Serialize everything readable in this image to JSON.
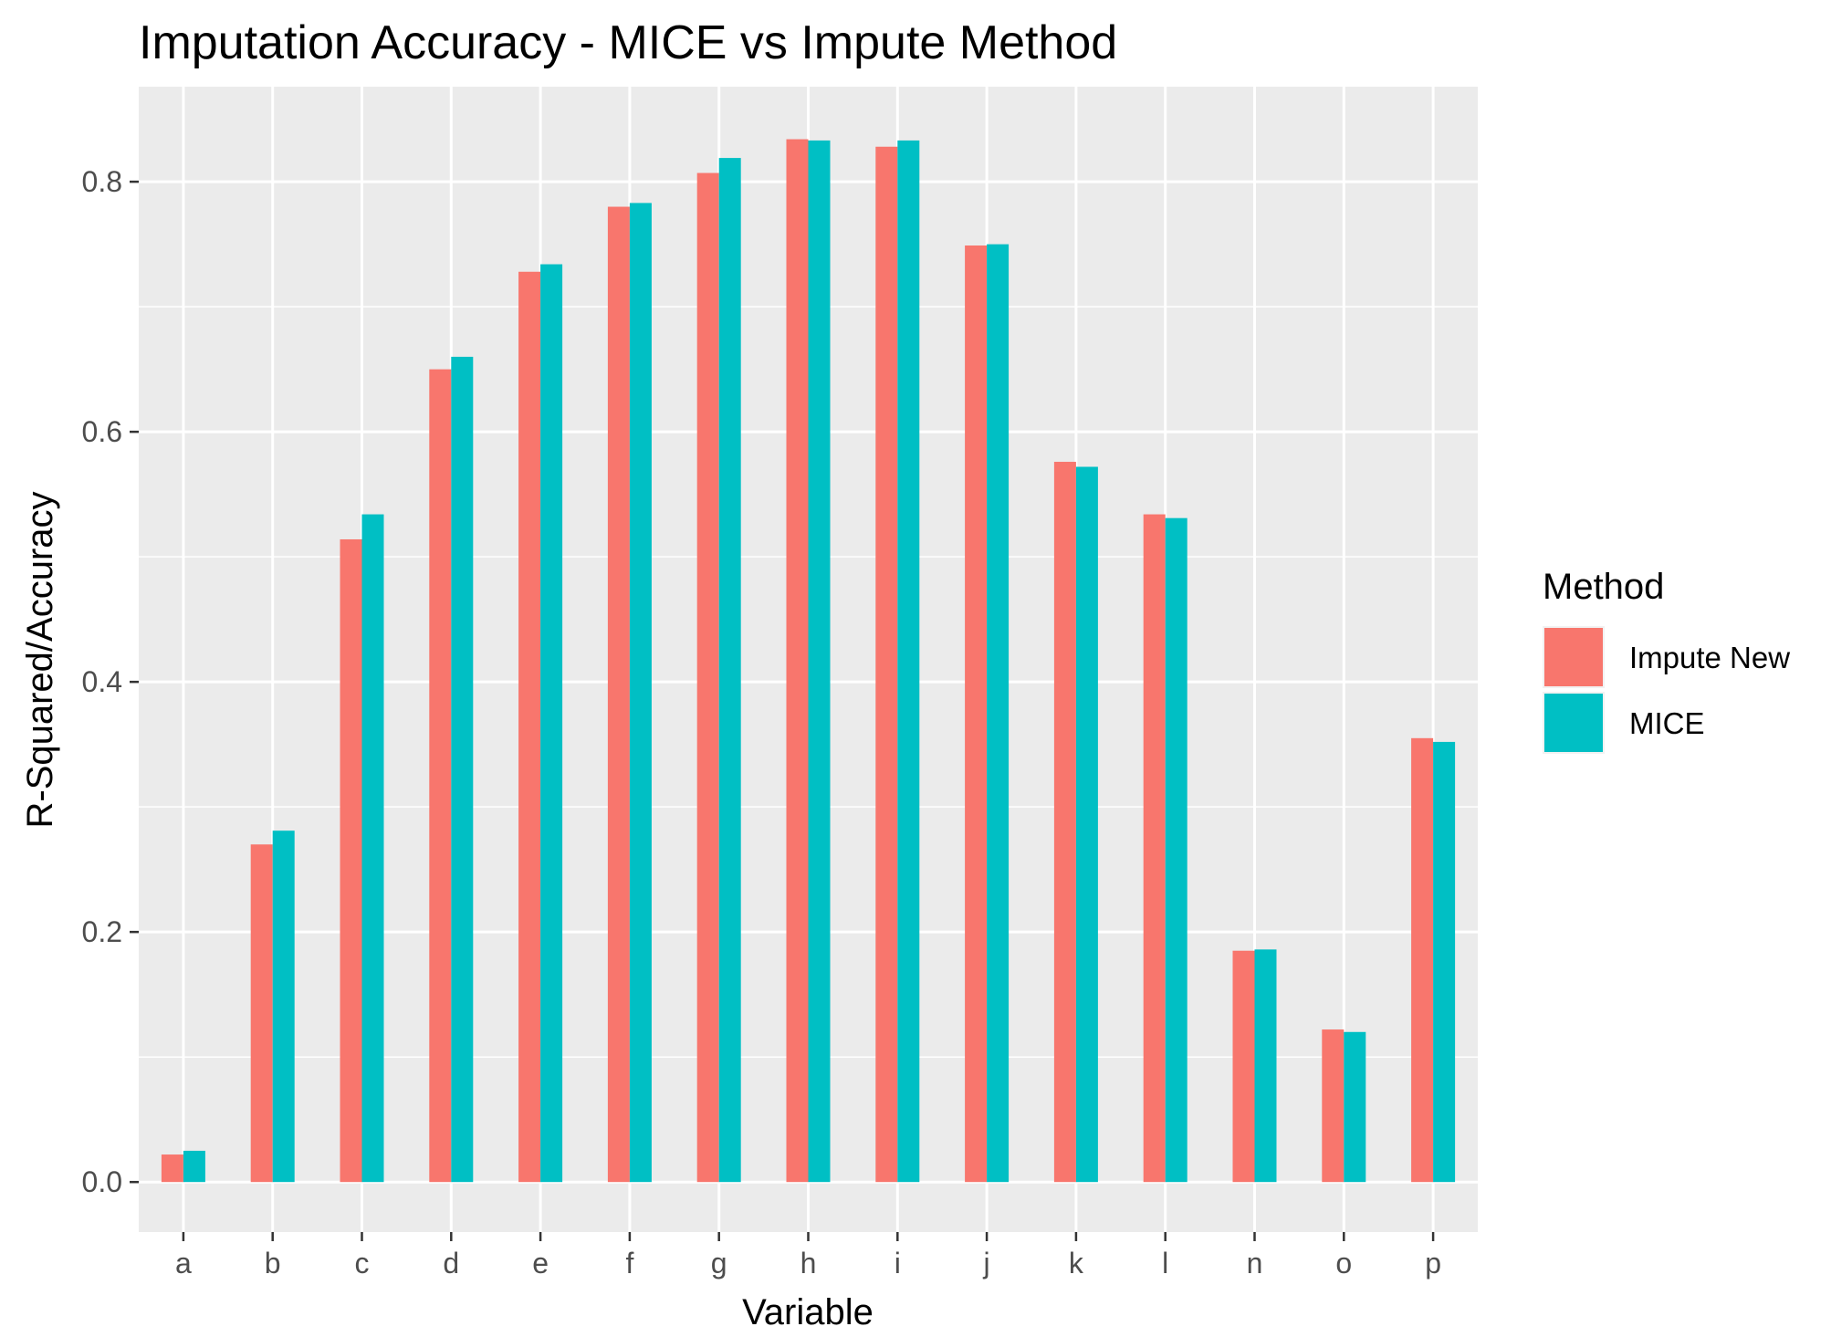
{
  "chart_data": {
    "type": "bar",
    "title": "Imputation Accuracy - MICE vs Impute Method",
    "xlabel": "Variable",
    "ylabel": "R-Squared/Accuracy",
    "categories": [
      "a",
      "b",
      "c",
      "d",
      "e",
      "f",
      "g",
      "h",
      "i",
      "j",
      "k",
      "l",
      "n",
      "o",
      "p"
    ],
    "series": [
      {
        "name": "Impute New",
        "color": "#F8766D",
        "values": [
          0.022,
          0.27,
          0.514,
          0.65,
          0.728,
          0.78,
          0.807,
          0.834,
          0.828,
          0.749,
          0.576,
          0.534,
          0.185,
          0.122,
          0.355
        ]
      },
      {
        "name": "MICE",
        "color": "#00BFC4",
        "values": [
          0.025,
          0.281,
          0.534,
          0.66,
          0.734,
          0.783,
          0.819,
          0.833,
          0.833,
          0.75,
          0.572,
          0.531,
          0.186,
          0.12,
          0.352
        ]
      }
    ],
    "ylim": [
      -0.04,
      0.876
    ],
    "yticks": [
      0.0,
      0.2,
      0.4,
      0.6,
      0.8
    ],
    "ytick_labels": [
      "0.0",
      "0.2",
      "0.4",
      "0.6",
      "0.8"
    ],
    "grid": true,
    "legend": {
      "title": "Method",
      "position": "right"
    },
    "colors": {
      "panel": "#EBEBEB",
      "gridline": "#FFFFFF",
      "tick_text": "#4D4D4D"
    }
  }
}
